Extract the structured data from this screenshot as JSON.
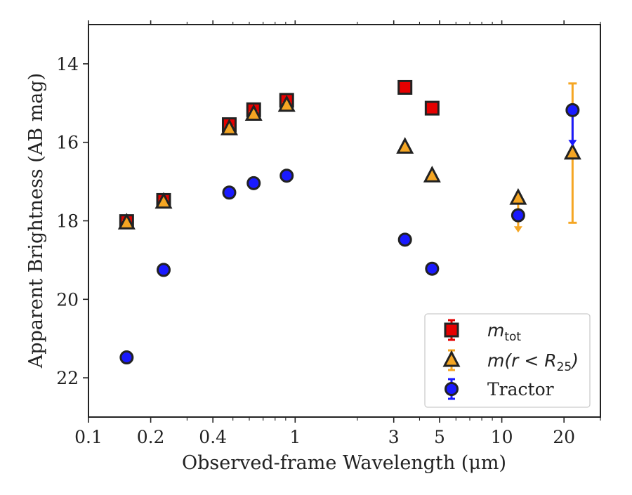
{
  "chart_data": {
    "type": "scatter",
    "xlabel": "Observed-frame Wavelength (μm)",
    "ylabel": "Apparent Brightness (AB mag)",
    "xscale": "log",
    "xlim": [
      0.1,
      30
    ],
    "ylim": [
      23,
      13
    ],
    "y_inverted": true,
    "grid": false,
    "legend_position": "lower-right",
    "x_tick_labels": [
      "0.1",
      "0.2",
      "0.4",
      "1",
      "3",
      "5",
      "10",
      "20"
    ],
    "x_ticks": [
      0.1,
      0.2,
      0.4,
      1,
      3,
      5,
      10,
      20
    ],
    "y_tick_labels": [
      "14",
      "16",
      "18",
      "20",
      "22"
    ],
    "y_ticks": [
      14,
      16,
      18,
      20,
      22
    ],
    "series": [
      {
        "key": "mtot",
        "legend_main": "m",
        "legend_sub": "tot",
        "marker": "square",
        "color": "#e60000",
        "edge": "#222222",
        "points": [
          {
            "x": 0.153,
            "y": 18.02,
            "err": 0.05
          },
          {
            "x": 0.231,
            "y": 17.48,
            "err": 0.05
          },
          {
            "x": 0.48,
            "y": 15.55,
            "err": 0.05
          },
          {
            "x": 0.63,
            "y": 15.17,
            "err": 0.05
          },
          {
            "x": 0.91,
            "y": 14.93,
            "err": 0.05
          },
          {
            "x": 3.4,
            "y": 14.6,
            "err": 0.03
          },
          {
            "x": 4.6,
            "y": 15.13,
            "err": 0.03
          }
        ]
      },
      {
        "key": "mr25",
        "legend_main": "m(r < R",
        "legend_sub": "25",
        "legend_tail": ")",
        "marker": "triangle",
        "color": "#f5a623",
        "edge": "#222222",
        "points": [
          {
            "x": 0.153,
            "y": 18.05,
            "err": 0.05
          },
          {
            "x": 0.231,
            "y": 17.52,
            "err": 0.05
          },
          {
            "x": 0.48,
            "y": 15.65,
            "err": 0.05
          },
          {
            "x": 0.63,
            "y": 15.28,
            "err": 0.05
          },
          {
            "x": 0.91,
            "y": 15.05,
            "err": 0.05
          },
          {
            "x": 3.4,
            "y": 16.12,
            "err": 0.03
          },
          {
            "x": 4.6,
            "y": 16.85,
            "err": 0.03
          },
          {
            "x": 12.0,
            "y": 17.42,
            "upper_limit_to": 18.3
          },
          {
            "x": 22.0,
            "y": 16.27,
            "err_low": 14.5,
            "err_high": 18.05
          }
        ]
      },
      {
        "key": "tractor",
        "legend_main": "Tractor",
        "marker": "circle",
        "color": "#1a1aff",
        "edge": "#222222",
        "points": [
          {
            "x": 0.153,
            "y": 21.48,
            "err": 0.08
          },
          {
            "x": 0.231,
            "y": 19.25,
            "err": 0.08
          },
          {
            "x": 0.48,
            "y": 17.28,
            "err": 0.08
          },
          {
            "x": 0.63,
            "y": 17.04,
            "err": 0.08
          },
          {
            "x": 0.91,
            "y": 16.85,
            "err": 0.08
          },
          {
            "x": 3.4,
            "y": 18.48,
            "err": 0.08
          },
          {
            "x": 4.6,
            "y": 19.22,
            "err": 0.08
          },
          {
            "x": 12.0,
            "y": 17.86,
            "err": 0.08
          },
          {
            "x": 22.0,
            "y": 15.18,
            "arrow_to": 16.1
          }
        ]
      }
    ]
  }
}
